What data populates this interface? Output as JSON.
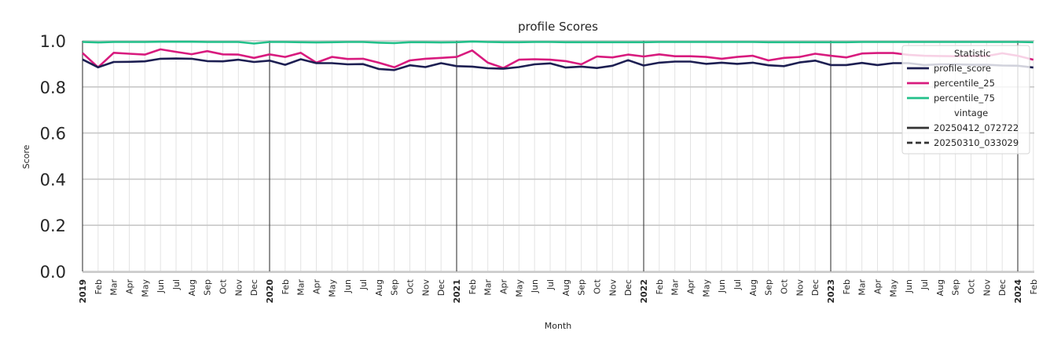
{
  "chart_data": {
    "type": "line",
    "title": "profile Scores",
    "xlabel": "Month",
    "ylabel": "Score",
    "ylim": [
      0.0,
      1.0
    ],
    "yticks": [
      "0.0",
      "0.2",
      "0.4",
      "0.6",
      "0.8",
      "1.0"
    ],
    "grid": true,
    "legend_position": "upper right",
    "legend": {
      "title_statistic": "Statistic",
      "statistic_entries": [
        {
          "label": "profile_score",
          "color": "#1d1f52"
        },
        {
          "label": "percentile_25",
          "color": "#d81b7e"
        },
        {
          "label": "percentile_75",
          "color": "#22c08a"
        }
      ],
      "title_vintage": "vintage",
      "vintage_entries": [
        {
          "label": "20250412_072722",
          "style": "solid"
        },
        {
          "label": "20250310_033029",
          "style": "dashed"
        }
      ]
    },
    "x": [
      "2019",
      "Feb",
      "Mar",
      "Apr",
      "May",
      "Jun",
      "Jul",
      "Aug",
      "Sep",
      "Oct",
      "Nov",
      "Dec",
      "2020",
      "Feb",
      "Mar",
      "Apr",
      "May",
      "Jun",
      "Jul",
      "Aug",
      "Sep",
      "Oct",
      "Nov",
      "Dec",
      "2021",
      "Feb",
      "Mar",
      "Apr",
      "May",
      "Jun",
      "Jul",
      "Aug",
      "Sep",
      "Oct",
      "Nov",
      "Dec",
      "2022",
      "Feb",
      "Mar",
      "Apr",
      "May",
      "Jun",
      "Jul",
      "Aug",
      "Sep",
      "Oct",
      "Nov",
      "Dec",
      "2023",
      "Feb",
      "Mar",
      "Apr",
      "May",
      "Jun",
      "Jul",
      "Aug",
      "Sep",
      "Oct",
      "Nov",
      "Dec",
      "2024",
      "Feb"
    ],
    "series": [
      {
        "name": "percentile_75",
        "vintage": "20250412_072722",
        "color": "#22c08a",
        "values": [
          0.995,
          0.993,
          0.995,
          0.995,
          0.995,
          0.996,
          0.996,
          0.996,
          0.995,
          0.995,
          0.995,
          0.988,
          0.995,
          0.995,
          0.994,
          0.993,
          0.994,
          0.995,
          0.995,
          0.992,
          0.99,
          0.994,
          0.994,
          0.993,
          0.994,
          0.997,
          0.995,
          0.994,
          0.994,
          0.995,
          0.995,
          0.994,
          0.994,
          0.994,
          0.994,
          0.994,
          0.994,
          0.995,
          0.995,
          0.995,
          0.995,
          0.995,
          0.995,
          0.995,
          0.994,
          0.994,
          0.994,
          0.994,
          0.994,
          0.994,
          0.995,
          0.995,
          0.995,
          0.995,
          0.995,
          0.995,
          0.995,
          0.995,
          0.995,
          0.995,
          0.995,
          0.994
        ]
      },
      {
        "name": "percentile_25",
        "vintage": "20250412_072722",
        "color": "#d81b7e",
        "values": [
          0.947,
          0.885,
          0.948,
          0.944,
          0.94,
          0.963,
          0.952,
          0.942,
          0.955,
          0.941,
          0.94,
          0.926,
          0.941,
          0.93,
          0.948,
          0.905,
          0.93,
          0.921,
          0.922,
          0.905,
          0.885,
          0.915,
          0.922,
          0.926,
          0.93,
          0.958,
          0.905,
          0.882,
          0.918,
          0.92,
          0.918,
          0.912,
          0.898,
          0.932,
          0.928,
          0.94,
          0.932,
          0.941,
          0.933,
          0.933,
          0.93,
          0.922,
          0.93,
          0.935,
          0.915,
          0.926,
          0.93,
          0.944,
          0.935,
          0.928,
          0.945,
          0.947,
          0.947,
          0.939,
          0.935,
          0.934,
          0.933,
          0.934,
          0.934,
          0.946,
          0.935,
          0.918
        ]
      },
      {
        "name": "profile_score",
        "vintage": "20250412_072722",
        "color": "#1d1f52",
        "values": [
          0.919,
          0.885,
          0.908,
          0.909,
          0.911,
          0.922,
          0.923,
          0.922,
          0.912,
          0.911,
          0.918,
          0.908,
          0.914,
          0.896,
          0.92,
          0.903,
          0.903,
          0.898,
          0.899,
          0.878,
          0.873,
          0.894,
          0.886,
          0.903,
          0.89,
          0.888,
          0.881,
          0.879,
          0.886,
          0.898,
          0.902,
          0.884,
          0.888,
          0.882,
          0.892,
          0.916,
          0.893,
          0.905,
          0.91,
          0.91,
          0.9,
          0.905,
          0.9,
          0.905,
          0.894,
          0.89,
          0.906,
          0.914,
          0.895,
          0.895,
          0.904,
          0.895,
          0.903,
          0.903,
          0.895,
          0.898,
          0.898,
          0.896,
          0.896,
          0.893,
          0.892,
          0.884
        ]
      }
    ]
  }
}
